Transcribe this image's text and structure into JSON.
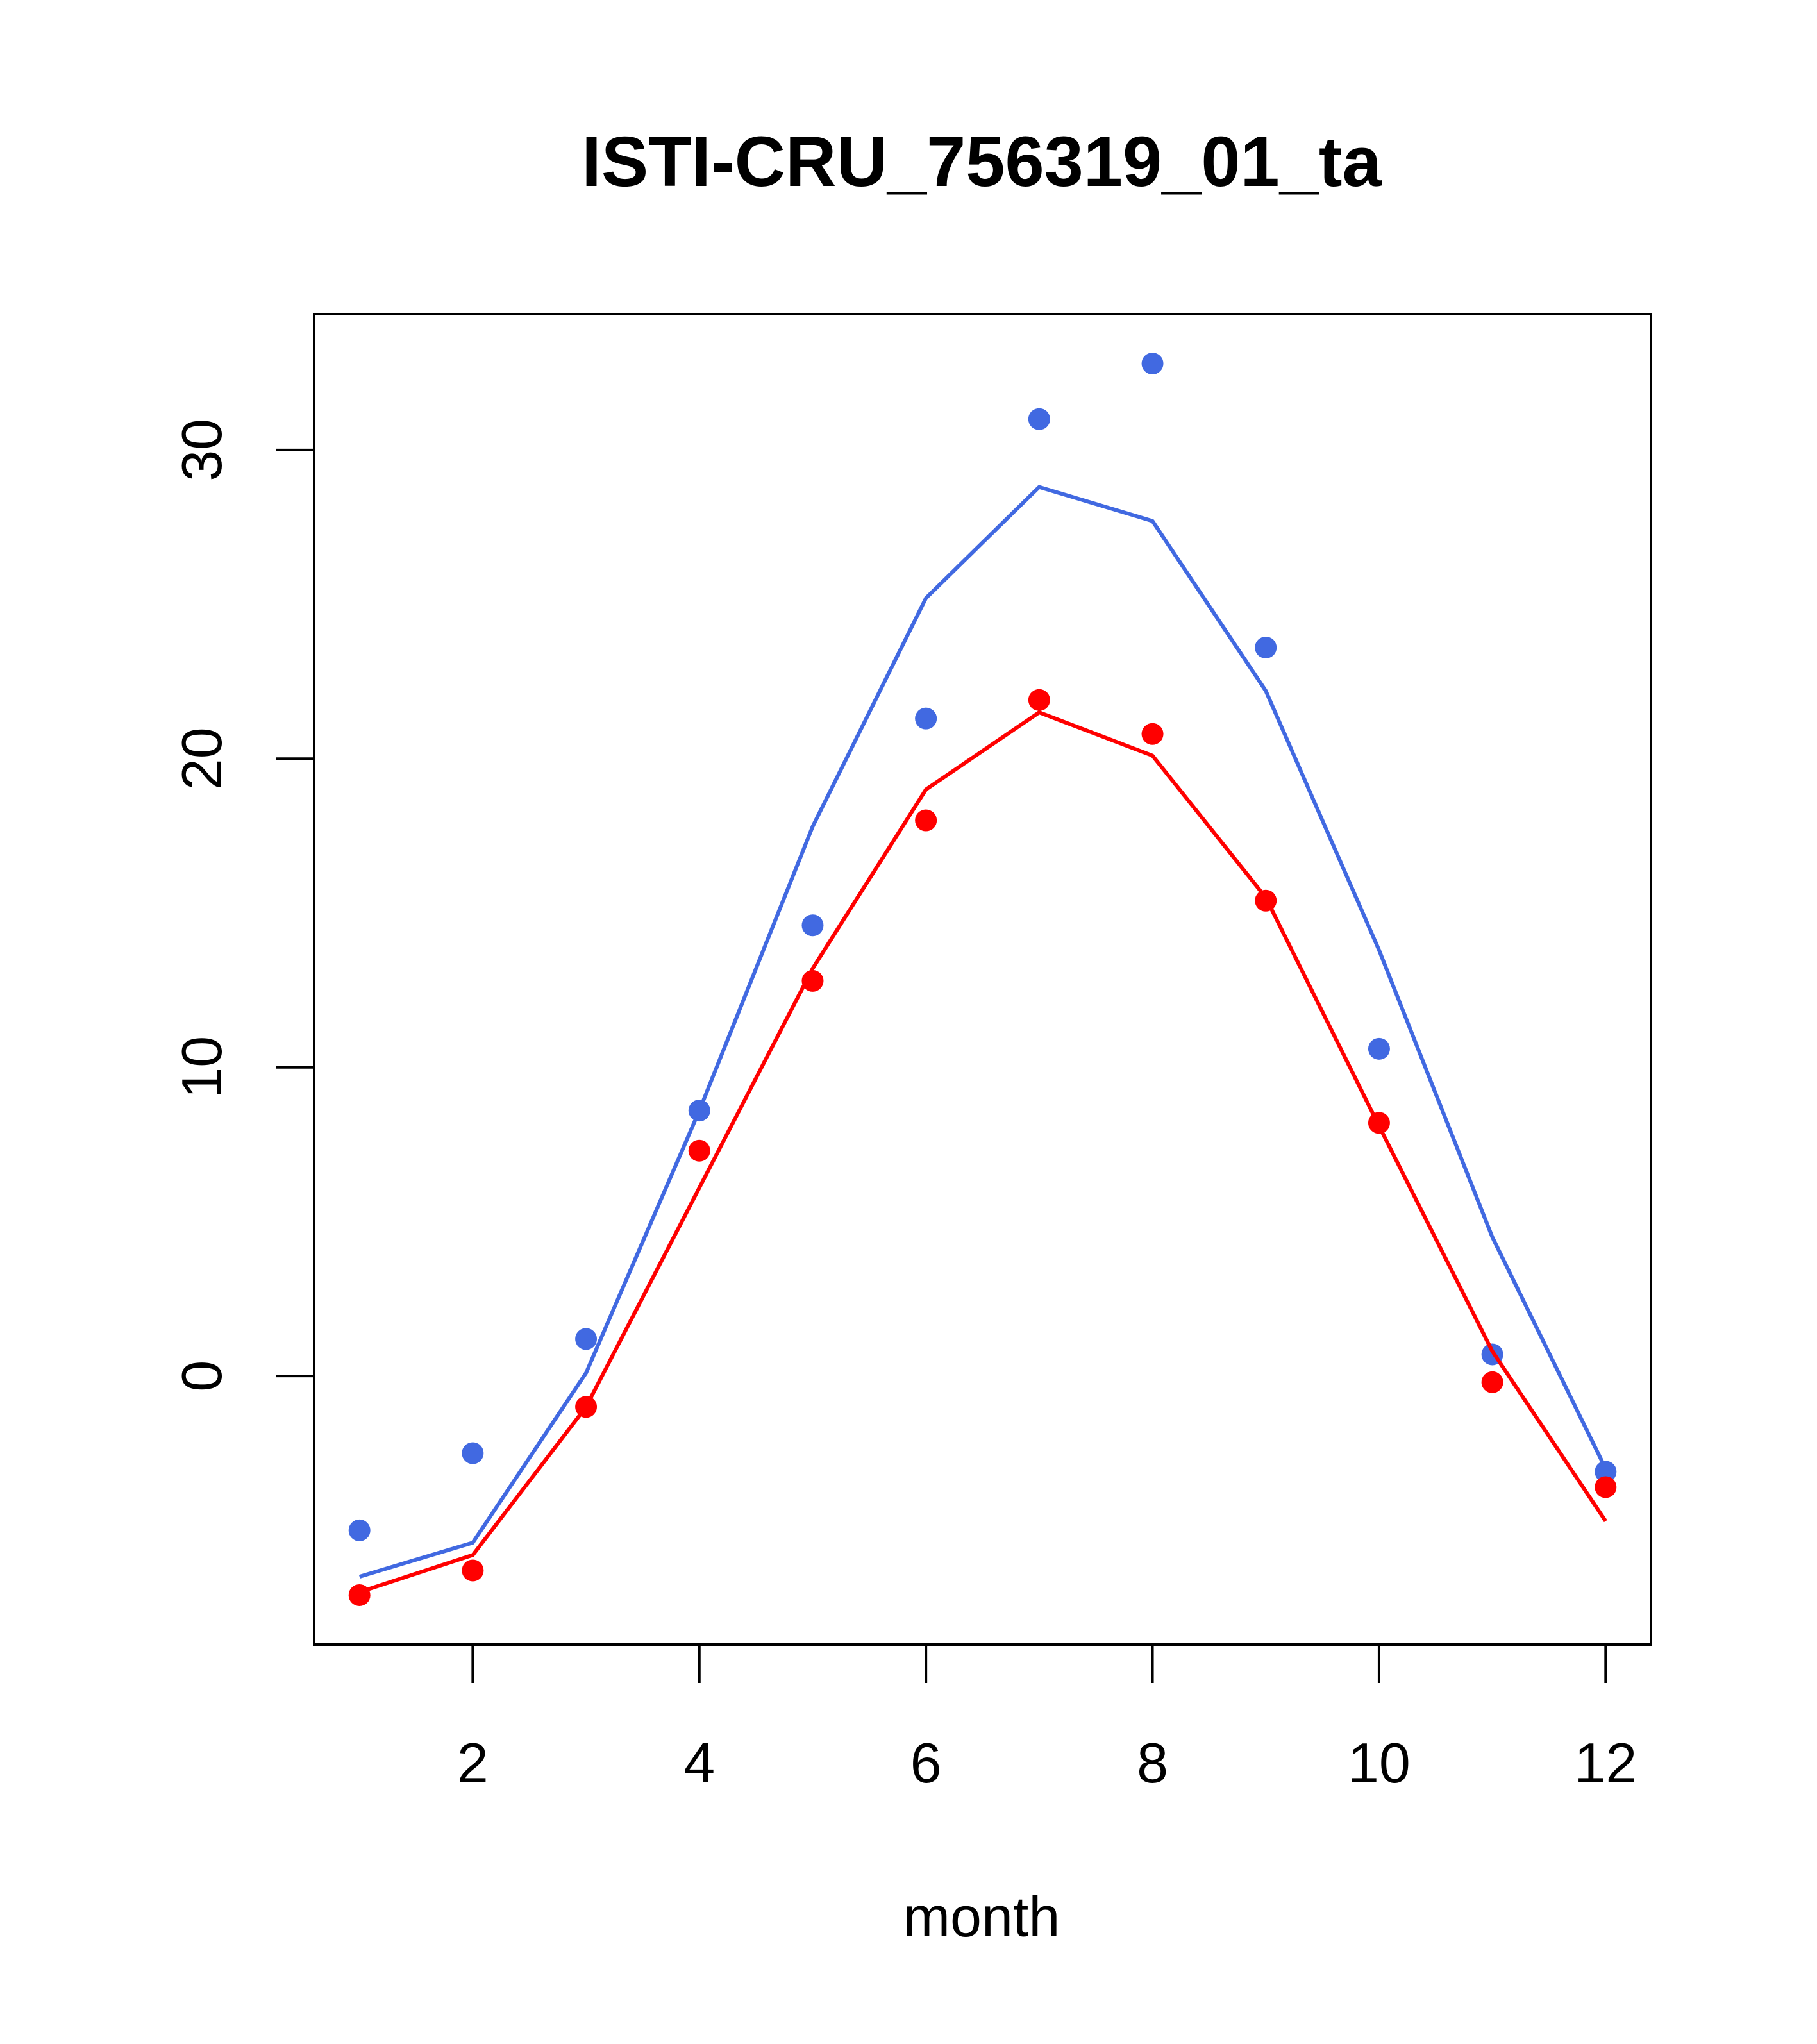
{
  "chart_data": {
    "type": "line",
    "title": "ISTI-CRU_756319_01_ta",
    "xlabel": "month",
    "ylabel": "",
    "xlim": [
      0.6,
      12.4
    ],
    "ylim": [
      -8.7,
      34.4
    ],
    "xticks": [
      2,
      4,
      6,
      8,
      10,
      12
    ],
    "yticks": [
      0,
      10,
      20,
      30
    ],
    "grid": false,
    "legend": "none",
    "series": [
      {
        "color": "#4169E1",
        "points": [
          {
            "x": 1,
            "y": -5.0
          },
          {
            "x": 2,
            "y": -2.5
          },
          {
            "x": 3,
            "y": 1.2
          },
          {
            "x": 4,
            "y": 8.6
          },
          {
            "x": 5,
            "y": 14.6
          },
          {
            "x": 6,
            "y": 21.3
          },
          {
            "x": 7,
            "y": 31.0
          },
          {
            "x": 8,
            "y": 32.8
          },
          {
            "x": 9,
            "y": 23.6
          },
          {
            "x": 10,
            "y": 10.6
          },
          {
            "x": 11,
            "y": 0.7
          },
          {
            "x": 12,
            "y": -3.1
          }
        ],
        "line": [
          {
            "x": 1,
            "y": -6.5
          },
          {
            "x": 2,
            "y": -5.4
          },
          {
            "x": 3,
            "y": 0.1
          },
          {
            "x": 4,
            "y": 8.6
          },
          {
            "x": 5,
            "y": 17.8
          },
          {
            "x": 6,
            "y": 25.2
          },
          {
            "x": 7,
            "y": 28.8
          },
          {
            "x": 8,
            "y": 27.7
          },
          {
            "x": 9,
            "y": 22.2
          },
          {
            "x": 10,
            "y": 13.8
          },
          {
            "x": 11,
            "y": 4.5
          },
          {
            "x": 12,
            "y": -3.0
          }
        ]
      },
      {
        "color": "#FF0000",
        "points": [
          {
            "x": 1,
            "y": -7.1
          },
          {
            "x": 2,
            "y": -6.3
          },
          {
            "x": 3,
            "y": -1.0
          },
          {
            "x": 4,
            "y": 7.3
          },
          {
            "x": 5,
            "y": 12.8
          },
          {
            "x": 6,
            "y": 18.0
          },
          {
            "x": 7,
            "y": 21.9
          },
          {
            "x": 8,
            "y": 20.8
          },
          {
            "x": 9,
            "y": 15.4
          },
          {
            "x": 10,
            "y": 8.2
          },
          {
            "x": 11,
            "y": -0.2
          },
          {
            "x": 12,
            "y": -3.6
          }
        ],
        "line": [
          {
            "x": 1,
            "y": -7.0
          },
          {
            "x": 2,
            "y": -5.8
          },
          {
            "x": 3,
            "y": -1.0
          },
          {
            "x": 4,
            "y": 6.1
          },
          {
            "x": 5,
            "y": 13.2
          },
          {
            "x": 6,
            "y": 19.0
          },
          {
            "x": 7,
            "y": 21.5
          },
          {
            "x": 8,
            "y": 20.1
          },
          {
            "x": 9,
            "y": 15.5
          },
          {
            "x": 10,
            "y": 8.1
          },
          {
            "x": 11,
            "y": 0.8
          },
          {
            "x": 12,
            "y": -4.7
          }
        ]
      }
    ]
  }
}
